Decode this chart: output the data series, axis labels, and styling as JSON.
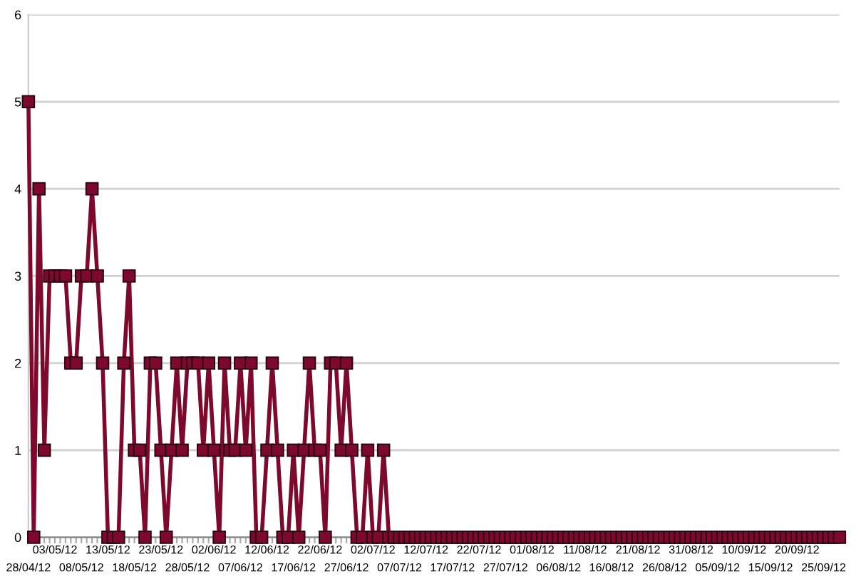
{
  "chart_data": {
    "type": "line",
    "categories": [
      "28/04/12",
      null,
      null,
      null,
      null,
      "03/05/12",
      null,
      null,
      null,
      null,
      "08/05/12",
      null,
      null,
      null,
      null,
      "13/05/12",
      null,
      null,
      null,
      null,
      "18/05/12",
      null,
      null,
      null,
      null,
      "23/05/12",
      null,
      null,
      null,
      null,
      "28/05/12",
      null,
      null,
      null,
      null,
      "02/06/12",
      null,
      null,
      null,
      null,
      "07/06/12",
      null,
      null,
      null,
      null,
      "12/06/12",
      null,
      null,
      null,
      null,
      "17/06/12",
      null,
      null,
      null,
      null,
      "22/06/12",
      null,
      null,
      null,
      null,
      "27/06/12",
      null,
      null,
      null,
      null,
      "02/07/12",
      null,
      null,
      null,
      null,
      "07/07/12",
      null,
      null,
      null,
      null,
      "12/07/12",
      null,
      null,
      null,
      null,
      "17/07/12",
      null,
      null,
      null,
      null,
      "22/07/12",
      null,
      null,
      null,
      null,
      "27/07/12",
      null,
      null,
      null,
      null,
      "01/08/12",
      null,
      null,
      null,
      null,
      "06/08/12",
      null,
      null,
      null,
      null,
      "11/08/12",
      null,
      null,
      null,
      null,
      "16/08/12",
      null,
      null,
      null,
      null,
      "21/08/12",
      null,
      null,
      null,
      null,
      "26/08/12",
      null,
      null,
      null,
      null,
      "31/08/12",
      null,
      null,
      null,
      null,
      "05/09/12",
      null,
      null,
      null,
      null,
      "10/09/12",
      null,
      null,
      null,
      null,
      "15/09/12",
      null,
      null,
      null,
      null,
      "20/09/12",
      null,
      null,
      null,
      null,
      "25/09/12",
      null,
      null,
      null
    ],
    "series": [
      {
        "color": "#7d0a2c",
        "values": [
          5,
          0,
          4,
          1,
          3,
          3,
          3,
          3,
          2,
          2,
          3,
          3,
          4,
          3,
          2,
          0,
          0,
          0,
          2,
          3,
          1,
          1,
          0,
          2,
          2,
          1,
          0,
          1,
          2,
          1,
          2,
          2,
          2,
          1,
          2,
          1,
          0,
          2,
          1,
          1,
          2,
          1,
          2,
          0,
          0,
          1,
          2,
          1,
          0,
          0,
          1,
          0,
          1,
          2,
          1,
          1,
          0,
          2,
          2,
          1,
          2,
          1,
          0,
          0,
          1,
          0,
          0,
          1,
          0,
          0,
          0,
          0,
          0,
          0,
          0,
          0,
          0,
          0,
          0,
          0,
          0,
          0,
          0,
          0,
          0,
          0,
          0,
          0,
          0,
          0,
          0,
          0,
          0,
          0,
          0,
          0,
          0,
          0,
          0,
          0,
          0,
          0,
          0,
          0,
          0,
          0,
          0,
          0,
          0,
          0,
          0,
          0,
          0,
          0,
          0,
          0,
          0,
          0,
          0,
          0,
          0,
          0,
          0,
          0,
          0,
          0,
          0,
          0,
          0,
          0,
          0,
          0,
          0,
          0,
          0,
          0,
          0,
          0,
          0,
          0,
          0,
          0,
          0,
          0,
          0,
          0,
          0,
          0,
          0,
          0,
          0,
          0,
          0,
          0
        ]
      }
    ],
    "ylim": [
      0,
      6
    ],
    "yticks": [
      0,
      1,
      2,
      3,
      4,
      5,
      6
    ],
    "grid": "y",
    "marker": "square",
    "line_style": "solid"
  }
}
